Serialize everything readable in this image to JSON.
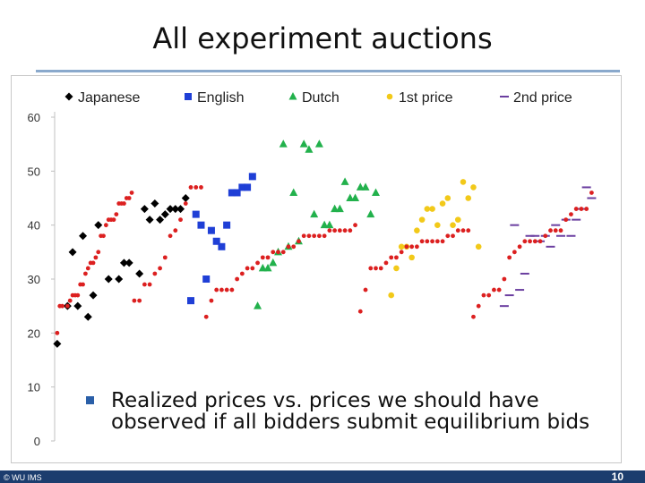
{
  "slide": {
    "title": "All experiment auctions",
    "note": "Realized prices vs. prices we should have observed if all bidders submit equilibrium bids",
    "footer_left": "© WU IMS",
    "page_number": "10"
  },
  "colors": {
    "japanese": "#000000",
    "english": "#1f3fd6",
    "dutch": "#22b14c",
    "first_price": "#f2c919",
    "second_price": "#6b3fa0",
    "equilibrium": "#dc2020",
    "rule": "#8aa9cc",
    "footer": "#1c3d6e"
  },
  "chart_data": {
    "type": "scatter",
    "title": "",
    "xlabel": "",
    "ylabel": "",
    "ylim": [
      0,
      60
    ],
    "yticks": [
      0,
      10,
      20,
      30,
      40,
      50,
      60
    ],
    "grid": false,
    "legend_position": "top",
    "series": [
      {
        "name": "Japanese",
        "marker": "diamond",
        "color": "#000000",
        "points": [
          [
            1,
            18
          ],
          [
            3,
            25
          ],
          [
            4,
            35
          ],
          [
            5,
            25
          ],
          [
            6,
            38
          ],
          [
            7,
            23
          ],
          [
            8,
            27
          ],
          [
            9,
            40
          ],
          [
            11,
            30
          ],
          [
            13,
            30
          ],
          [
            14,
            33
          ],
          [
            15,
            33
          ],
          [
            17,
            31
          ],
          [
            18,
            43
          ],
          [
            19,
            41
          ],
          [
            20,
            44
          ],
          [
            21,
            41
          ],
          [
            22,
            42
          ],
          [
            23,
            43
          ],
          [
            24,
            43
          ],
          [
            25,
            43
          ],
          [
            26,
            45
          ]
        ]
      },
      {
        "name": "English",
        "marker": "square",
        "color": "#1f3fd6",
        "points": [
          [
            27,
            26
          ],
          [
            28,
            42
          ],
          [
            29,
            40
          ],
          [
            30,
            30
          ],
          [
            31,
            39
          ],
          [
            32,
            37
          ],
          [
            33,
            36
          ],
          [
            34,
            40
          ],
          [
            35,
            46
          ],
          [
            36,
            46
          ],
          [
            37,
            47
          ],
          [
            38,
            47
          ],
          [
            39,
            49
          ]
        ]
      },
      {
        "name": "Dutch",
        "marker": "triangle",
        "color": "#22b14c",
        "points": [
          [
            40,
            25
          ],
          [
            41,
            32
          ],
          [
            42,
            32
          ],
          [
            43,
            33
          ],
          [
            44,
            35
          ],
          [
            45,
            55
          ],
          [
            46,
            36
          ],
          [
            47,
            46
          ],
          [
            48,
            37
          ],
          [
            49,
            55
          ],
          [
            50,
            54
          ],
          [
            51,
            42
          ],
          [
            52,
            55
          ],
          [
            53,
            40
          ],
          [
            54,
            40
          ],
          [
            55,
            43
          ],
          [
            56,
            43
          ],
          [
            57,
            48
          ],
          [
            58,
            45
          ],
          [
            59,
            45
          ],
          [
            60,
            47
          ],
          [
            61,
            47
          ],
          [
            62,
            42
          ],
          [
            63,
            46
          ]
        ]
      },
      {
        "name": "1st price",
        "marker": "circle",
        "color": "#f2c919",
        "points": [
          [
            66,
            27
          ],
          [
            67,
            32
          ],
          [
            68,
            36
          ],
          [
            69,
            36
          ],
          [
            70,
            34
          ],
          [
            71,
            39
          ],
          [
            72,
            41
          ],
          [
            73,
            43
          ],
          [
            74,
            43
          ],
          [
            75,
            40
          ],
          [
            76,
            44
          ],
          [
            77,
            45
          ],
          [
            78,
            40
          ],
          [
            79,
            41
          ],
          [
            80,
            48
          ],
          [
            81,
            45
          ],
          [
            82,
            47
          ],
          [
            83,
            36
          ]
        ]
      },
      {
        "name": "2nd price",
        "marker": "dash",
        "color": "#6b3fa0",
        "points": [
          [
            88,
            25
          ],
          [
            89,
            27
          ],
          [
            90,
            40
          ],
          [
            91,
            28
          ],
          [
            92,
            31
          ],
          [
            93,
            38
          ],
          [
            94,
            38
          ],
          [
            95,
            37
          ],
          [
            96,
            38
          ],
          [
            97,
            36
          ],
          [
            98,
            40
          ],
          [
            99,
            38
          ],
          [
            100,
            41
          ],
          [
            101,
            38
          ],
          [
            102,
            41
          ],
          [
            103,
            43
          ],
          [
            104,
            47
          ],
          [
            105,
            45
          ]
        ]
      },
      {
        "name": "",
        "marker": "small-dot",
        "color": "#dc2020",
        "points": [
          [
            1,
            20
          ],
          [
            1.5,
            25
          ],
          [
            2,
            25
          ],
          [
            3,
            25
          ],
          [
            3.5,
            26
          ],
          [
            4,
            27
          ],
          [
            4.5,
            27
          ],
          [
            5,
            27
          ],
          [
            5.5,
            29
          ],
          [
            6,
            29
          ],
          [
            6.5,
            31
          ],
          [
            7,
            32
          ],
          [
            7.5,
            33
          ],
          [
            8,
            33
          ],
          [
            8.5,
            34
          ],
          [
            9,
            35
          ],
          [
            9.5,
            38
          ],
          [
            10,
            38
          ],
          [
            10.5,
            40
          ],
          [
            11,
            41
          ],
          [
            11.5,
            41
          ],
          [
            12,
            41
          ],
          [
            12.5,
            42
          ],
          [
            13,
            44
          ],
          [
            13.5,
            44
          ],
          [
            14,
            44
          ],
          [
            14.5,
            45
          ],
          [
            15,
            45
          ],
          [
            15.5,
            46
          ],
          [
            16,
            26
          ],
          [
            17,
            26
          ],
          [
            18,
            29
          ],
          [
            19,
            29
          ],
          [
            20,
            31
          ],
          [
            21,
            32
          ],
          [
            22,
            34
          ],
          [
            23,
            38
          ],
          [
            24,
            39
          ],
          [
            25,
            41
          ],
          [
            26,
            44
          ],
          [
            27,
            47
          ],
          [
            28,
            47
          ],
          [
            29,
            47
          ],
          [
            30,
            23
          ],
          [
            31,
            26
          ],
          [
            32,
            28
          ],
          [
            33,
            28
          ],
          [
            34,
            28
          ],
          [
            35,
            28
          ],
          [
            36,
            30
          ],
          [
            37,
            31
          ],
          [
            38,
            32
          ],
          [
            39,
            32
          ],
          [
            40,
            33
          ],
          [
            41,
            34
          ],
          [
            42,
            34
          ],
          [
            43,
            35
          ],
          [
            44,
            35
          ],
          [
            45,
            35
          ],
          [
            46,
            36
          ],
          [
            47,
            36
          ],
          [
            48,
            37
          ],
          [
            49,
            38
          ],
          [
            50,
            38
          ],
          [
            51,
            38
          ],
          [
            52,
            38
          ],
          [
            53,
            38
          ],
          [
            54,
            39
          ],
          [
            55,
            39
          ],
          [
            56,
            39
          ],
          [
            57,
            39
          ],
          [
            58,
            39
          ],
          [
            59,
            40
          ],
          [
            60,
            24
          ],
          [
            61,
            28
          ],
          [
            62,
            32
          ],
          [
            63,
            32
          ],
          [
            64,
            32
          ],
          [
            65,
            33
          ],
          [
            66,
            34
          ],
          [
            67,
            34
          ],
          [
            68,
            35
          ],
          [
            69,
            36
          ],
          [
            70,
            36
          ],
          [
            71,
            36
          ],
          [
            72,
            37
          ],
          [
            73,
            37
          ],
          [
            74,
            37
          ],
          [
            75,
            37
          ],
          [
            76,
            37
          ],
          [
            77,
            38
          ],
          [
            78,
            38
          ],
          [
            79,
            39
          ],
          [
            80,
            39
          ],
          [
            81,
            39
          ],
          [
            82,
            23
          ],
          [
            83,
            25
          ],
          [
            84,
            27
          ],
          [
            85,
            27
          ],
          [
            86,
            28
          ],
          [
            87,
            28
          ],
          [
            88,
            30
          ],
          [
            89,
            34
          ],
          [
            90,
            35
          ],
          [
            91,
            36
          ],
          [
            92,
            37
          ],
          [
            93,
            37
          ],
          [
            94,
            37
          ],
          [
            95,
            37
          ],
          [
            96,
            38
          ],
          [
            97,
            39
          ],
          [
            98,
            39
          ],
          [
            99,
            39
          ],
          [
            100,
            41
          ],
          [
            101,
            42
          ],
          [
            102,
            43
          ],
          [
            103,
            43
          ],
          [
            104,
            43
          ],
          [
            105,
            46
          ]
        ]
      }
    ]
  }
}
